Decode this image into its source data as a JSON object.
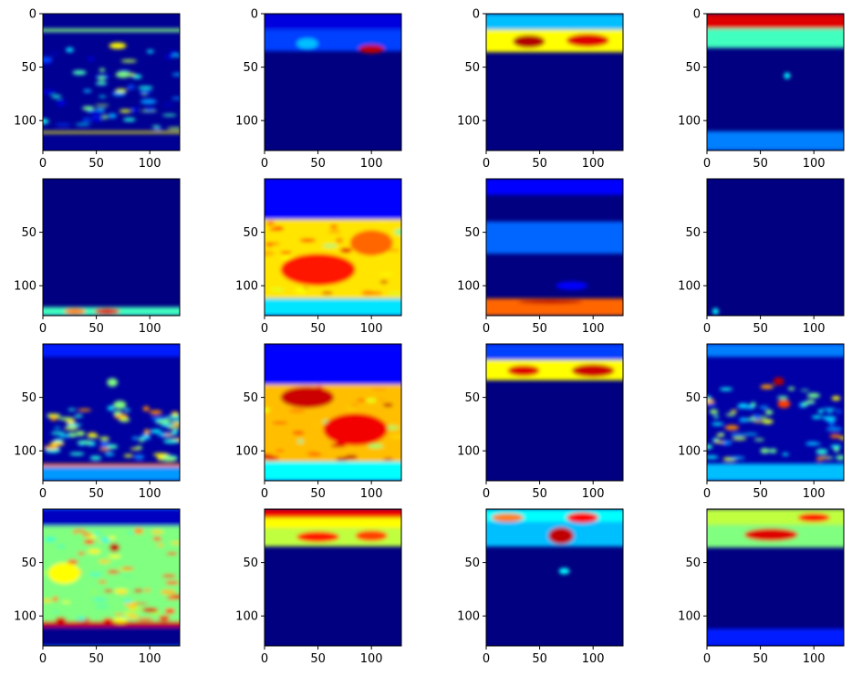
{
  "figure": {
    "layout": "4x4 grid of heatmap images",
    "colormap": "jet",
    "colormap_stops": [
      "#000080",
      "#0000ff",
      "#00ffff",
      "#ffff00",
      "#ff0000",
      "#800000"
    ]
  },
  "chart_data": {
    "type": "heatmap",
    "rows": 4,
    "cols": 4,
    "xlim": [
      0,
      128
    ],
    "ylim": [
      128,
      0
    ],
    "x_ticks": [
      0,
      50,
      100
    ],
    "y_ticks_full": [
      0,
      50,
      100
    ],
    "y_ticks_partial": [
      50,
      100
    ],
    "grid": false,
    "legend": "none",
    "panels": [
      {
        "id": 1,
        "y_ticks": [
          0,
          50,
          100
        ],
        "background": 0.03,
        "bands": [
          {
            "y0": 14,
            "y1": 17,
            "v": 0.5
          },
          {
            "y0": 110,
            "y1": 112,
            "v": 0.6
          }
        ],
        "blobs": [
          {
            "x": 70,
            "y": 30,
            "rx": 8,
            "ry": 3,
            "v": 0.6
          },
          {
            "x": 75,
            "y": 57,
            "rx": 7,
            "ry": 3,
            "v": 0.5
          }
        ],
        "texture": {
          "y0": 30,
          "y1": 108,
          "v": 0.35,
          "count": 60
        }
      },
      {
        "id": 2,
        "y_ticks": [
          0,
          50,
          100
        ],
        "background": 0.0,
        "bands": [
          {
            "y0": 0,
            "y1": 15,
            "v": 0.15
          },
          {
            "y0": 15,
            "y1": 35,
            "v": 0.25
          }
        ],
        "blobs": [
          {
            "x": 100,
            "y": 33,
            "rx": 12,
            "ry": 4,
            "v": 0.9
          },
          {
            "x": 40,
            "y": 28,
            "rx": 10,
            "ry": 5,
            "v": 0.35
          }
        ],
        "texture": null
      },
      {
        "id": 3,
        "y_ticks": [
          0,
          50,
          100
        ],
        "background": 0.0,
        "bands": [
          {
            "y0": 0,
            "y1": 15,
            "v": 0.35
          },
          {
            "y0": 15,
            "y1": 36,
            "v": 0.6
          }
        ],
        "blobs": [
          {
            "x": 40,
            "y": 26,
            "rx": 15,
            "ry": 6,
            "v": 0.92
          },
          {
            "x": 95,
            "y": 25,
            "rx": 20,
            "ry": 6,
            "v": 0.85
          }
        ],
        "texture": null
      },
      {
        "id": 4,
        "y_ticks": [
          0,
          50,
          100
        ],
        "background": 0.0,
        "bands": [
          {
            "y0": 0,
            "y1": 14,
            "v": 0.85
          },
          {
            "y0": 14,
            "y1": 32,
            "v": 0.45
          },
          {
            "y0": 110,
            "y1": 128,
            "v": 0.3
          }
        ],
        "blobs": [
          {
            "x": 75,
            "y": 58,
            "rx": 3,
            "ry": 3,
            "v": 0.4
          }
        ],
        "texture": null
      },
      {
        "id": 5,
        "y_ticks": [
          50,
          100
        ],
        "background": 0.0,
        "bands": [
          {
            "y0": 120,
            "y1": 128,
            "v": 0.45
          }
        ],
        "blobs": [
          {
            "x": 60,
            "y": 124,
            "rx": 12,
            "ry": 3,
            "v": 0.85
          },
          {
            "x": 30,
            "y": 124,
            "rx": 10,
            "ry": 3,
            "v": 0.7
          }
        ],
        "texture": null
      },
      {
        "id": 6,
        "y_ticks": [
          50,
          100
        ],
        "background": 0.05,
        "bands": [
          {
            "y0": 0,
            "y1": 38,
            "v": 0.2
          },
          {
            "y0": 38,
            "y1": 112,
            "v": 0.62
          },
          {
            "y0": 112,
            "y1": 128,
            "v": 0.38
          }
        ],
        "blobs": [
          {
            "x": 50,
            "y": 85,
            "rx": 35,
            "ry": 15,
            "v": 0.78
          },
          {
            "x": 100,
            "y": 60,
            "rx": 20,
            "ry": 12,
            "v": 0.72
          }
        ],
        "texture": {
          "y0": 40,
          "y1": 110,
          "v": 0.7,
          "count": 40
        }
      },
      {
        "id": 7,
        "y_ticks": [
          50,
          100
        ],
        "background": 0.0,
        "bands": [
          {
            "y0": 0,
            "y1": 15,
            "v": 0.2
          },
          {
            "y0": 40,
            "y1": 70,
            "v": 0.28
          },
          {
            "y0": 112,
            "y1": 128,
            "v": 0.72
          }
        ],
        "blobs": [
          {
            "x": 60,
            "y": 115,
            "rx": 30,
            "ry": 2,
            "v": 0.9
          },
          {
            "x": 80,
            "y": 100,
            "rx": 15,
            "ry": 4,
            "v": 0.2
          }
        ],
        "texture": null
      },
      {
        "id": 8,
        "y_ticks": [
          50,
          100
        ],
        "background": 0.0,
        "bands": [],
        "blobs": [
          {
            "x": 8,
            "y": 124,
            "rx": 3,
            "ry": 3,
            "v": 0.4
          }
        ],
        "texture": null
      },
      {
        "id": 9,
        "y_ticks": [
          50,
          100
        ],
        "background": 0.05,
        "bands": [
          {
            "y0": 0,
            "y1": 12,
            "v": 0.22
          },
          {
            "y0": 112,
            "y1": 115,
            "v": 0.7
          },
          {
            "y0": 115,
            "y1": 128,
            "v": 0.32
          }
        ],
        "blobs": [
          {
            "x": 65,
            "y": 36,
            "rx": 5,
            "ry": 4,
            "v": 0.5
          },
          {
            "x": 72,
            "y": 57,
            "rx": 6,
            "ry": 4,
            "v": 0.5
          }
        ],
        "texture": {
          "y0": 60,
          "y1": 108,
          "v": 0.5,
          "count": 70
        }
      },
      {
        "id": 10,
        "y_ticks": [
          50,
          100
        ],
        "background": 0.08,
        "bands": [
          {
            "y0": 0,
            "y1": 38,
            "v": 0.2
          },
          {
            "y0": 38,
            "y1": 110,
            "v": 0.65
          },
          {
            "y0": 110,
            "y1": 128,
            "v": 0.4
          }
        ],
        "blobs": [
          {
            "x": 40,
            "y": 50,
            "rx": 25,
            "ry": 10,
            "v": 0.88
          },
          {
            "x": 85,
            "y": 80,
            "rx": 30,
            "ry": 15,
            "v": 0.82
          }
        ],
        "texture": {
          "y0": 40,
          "y1": 108,
          "v": 0.7,
          "count": 40
        }
      },
      {
        "id": 11,
        "y_ticks": [
          50,
          100
        ],
        "background": 0.0,
        "bands": [
          {
            "y0": 0,
            "y1": 15,
            "v": 0.25
          },
          {
            "y0": 15,
            "y1": 34,
            "v": 0.6
          }
        ],
        "blobs": [
          {
            "x": 35,
            "y": 25,
            "rx": 15,
            "ry": 5,
            "v": 0.85
          },
          {
            "x": 100,
            "y": 25,
            "rx": 20,
            "ry": 6,
            "v": 0.88
          }
        ],
        "texture": null
      },
      {
        "id": 12,
        "y_ticks": [
          50,
          100
        ],
        "background": 0.06,
        "bands": [
          {
            "y0": 0,
            "y1": 12,
            "v": 0.3
          },
          {
            "y0": 112,
            "y1": 128,
            "v": 0.35
          }
        ],
        "blobs": [
          {
            "x": 67,
            "y": 35,
            "rx": 5,
            "ry": 4,
            "v": 0.92
          },
          {
            "x": 72,
            "y": 56,
            "rx": 6,
            "ry": 4,
            "v": 0.75
          }
        ],
        "texture": {
          "y0": 40,
          "y1": 108,
          "v": 0.5,
          "count": 70
        }
      },
      {
        "id": 13,
        "y_ticks": [
          50,
          100
        ],
        "background": 0.3,
        "bands": [
          {
            "y0": 0,
            "y1": 16,
            "v": 0.1
          },
          {
            "y0": 16,
            "y1": 108,
            "v": 0.5
          },
          {
            "y0": 105,
            "y1": 110,
            "v": 0.88
          },
          {
            "y0": 110,
            "y1": 128,
            "v": 0.02
          }
        ],
        "blobs": [
          {
            "x": 67,
            "y": 36,
            "rx": 5,
            "ry": 4,
            "v": 0.9
          },
          {
            "x": 20,
            "y": 60,
            "rx": 15,
            "ry": 10,
            "v": 0.6
          }
        ],
        "texture": {
          "y0": 20,
          "y1": 105,
          "v": 0.65,
          "count": 80
        }
      },
      {
        "id": 14,
        "y_ticks": [
          50,
          100
        ],
        "background": 0.0,
        "bands": [
          {
            "y0": 0,
            "y1": 8,
            "v": 0.82
          },
          {
            "y0": 8,
            "y1": 18,
            "v": 0.6
          },
          {
            "y0": 18,
            "y1": 35,
            "v": 0.55
          }
        ],
        "blobs": [
          {
            "x": 50,
            "y": 26,
            "rx": 20,
            "ry": 5,
            "v": 0.78
          },
          {
            "x": 100,
            "y": 25,
            "rx": 15,
            "ry": 5,
            "v": 0.75
          }
        ],
        "texture": null
      },
      {
        "id": 15,
        "y_ticks": [
          50,
          100
        ],
        "background": 0.0,
        "bands": [
          {
            "y0": 0,
            "y1": 12,
            "v": 0.4
          },
          {
            "y0": 12,
            "y1": 35,
            "v": 0.35
          }
        ],
        "blobs": [
          {
            "x": 70,
            "y": 25,
            "rx": 12,
            "ry": 8,
            "v": 0.9
          },
          {
            "x": 90,
            "y": 8,
            "rx": 15,
            "ry": 5,
            "v": 0.8
          },
          {
            "x": 20,
            "y": 8,
            "rx": 15,
            "ry": 4,
            "v": 0.7
          },
          {
            "x": 73,
            "y": 58,
            "rx": 5,
            "ry": 3,
            "v": 0.4
          }
        ],
        "texture": null
      },
      {
        "id": 16,
        "y_ticks": [
          50,
          100
        ],
        "background": 0.0,
        "bands": [
          {
            "y0": 0,
            "y1": 15,
            "v": 0.55
          },
          {
            "y0": 15,
            "y1": 36,
            "v": 0.5
          },
          {
            "y0": 112,
            "y1": 128,
            "v": 0.22
          }
        ],
        "blobs": [
          {
            "x": 60,
            "y": 24,
            "rx": 25,
            "ry": 6,
            "v": 0.85
          },
          {
            "x": 100,
            "y": 8,
            "rx": 15,
            "ry": 4,
            "v": 0.8
          }
        ],
        "texture": null
      }
    ]
  }
}
